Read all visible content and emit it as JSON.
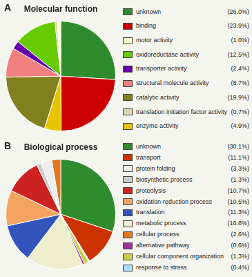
{
  "chart_data": [
    {
      "type": "pie",
      "title": "Molecular function",
      "annotation": "A",
      "categories": [
        "unknown",
        "binding",
        "enzyme activity",
        "catalytic activity",
        "structural molecule activity",
        "transporter activity",
        "oxidoreductase activity",
        "translation initiation factor activity",
        "motor activity"
      ],
      "values": [
        26.0,
        23.9,
        4.9,
        19.9,
        8.7,
        2.4,
        12.5,
        0.7,
        1.0
      ],
      "value_labels": [
        "(26.0%)",
        "(23.9%)",
        "(4.9%)",
        "(19.9%)",
        "(8.7%)",
        "(2.4%)",
        "(12.5%)",
        "(0.7%)",
        "(1.0%)"
      ],
      "colors": [
        "#2e8b2e",
        "#cc0000",
        "#e8c400",
        "#808020",
        "#f08080",
        "#6600aa",
        "#66cc00",
        "#d9d9b0",
        "#ffffcc"
      ],
      "legend": "right",
      "legend_order": [
        "unknown",
        "binding",
        "motor activity",
        "oxidoreductase activity",
        "transporter activity",
        "structural molecule activity",
        "catalytic activity",
        "translation initiation factor activity",
        "enzyme activity"
      ]
    },
    {
      "type": "pie",
      "title": "Biological process",
      "annotation": "B",
      "categories": [
        "unknown",
        "transport",
        "response to stress",
        "cellular component organization",
        "alternative pathway",
        "metabolic process",
        "translation",
        "oxidation-reduction process",
        "proteolysis",
        "biosynthetic process",
        "protein folding",
        "cellular process"
      ],
      "values": [
        30.1,
        11.1,
        0.4,
        1.3,
        0.6,
        16.8,
        11.3,
        10.5,
        10.7,
        1.3,
        3.3,
        2.6
      ],
      "value_labels": [
        "(30.1%)",
        "(11.1%)",
        "(0.4%)",
        "(1.3%)",
        "(0.6%)",
        "(16.8%)",
        "(11.3%)",
        "(10.5%)",
        "(10.7%)",
        "(1.3%)",
        "(3.3%)",
        "(2.6%)"
      ],
      "colors": [
        "#2e8b2e",
        "#cc3300",
        "#aaddff",
        "#cccc44",
        "#993399",
        "#eeeecc",
        "#3355bb",
        "#f4a460",
        "#cc2222",
        "#cccccc",
        "#eeeeee",
        "#e07820"
      ],
      "legend": "right",
      "legend_order": [
        "unknown",
        "transport",
        "protein folding",
        "biosynthetic process",
        "proteolysis",
        "oxidation-reduction process",
        "translation",
        "metabolic process",
        "cellular process",
        "alternative pathway",
        "cellular component organization",
        "response to stress"
      ]
    }
  ]
}
